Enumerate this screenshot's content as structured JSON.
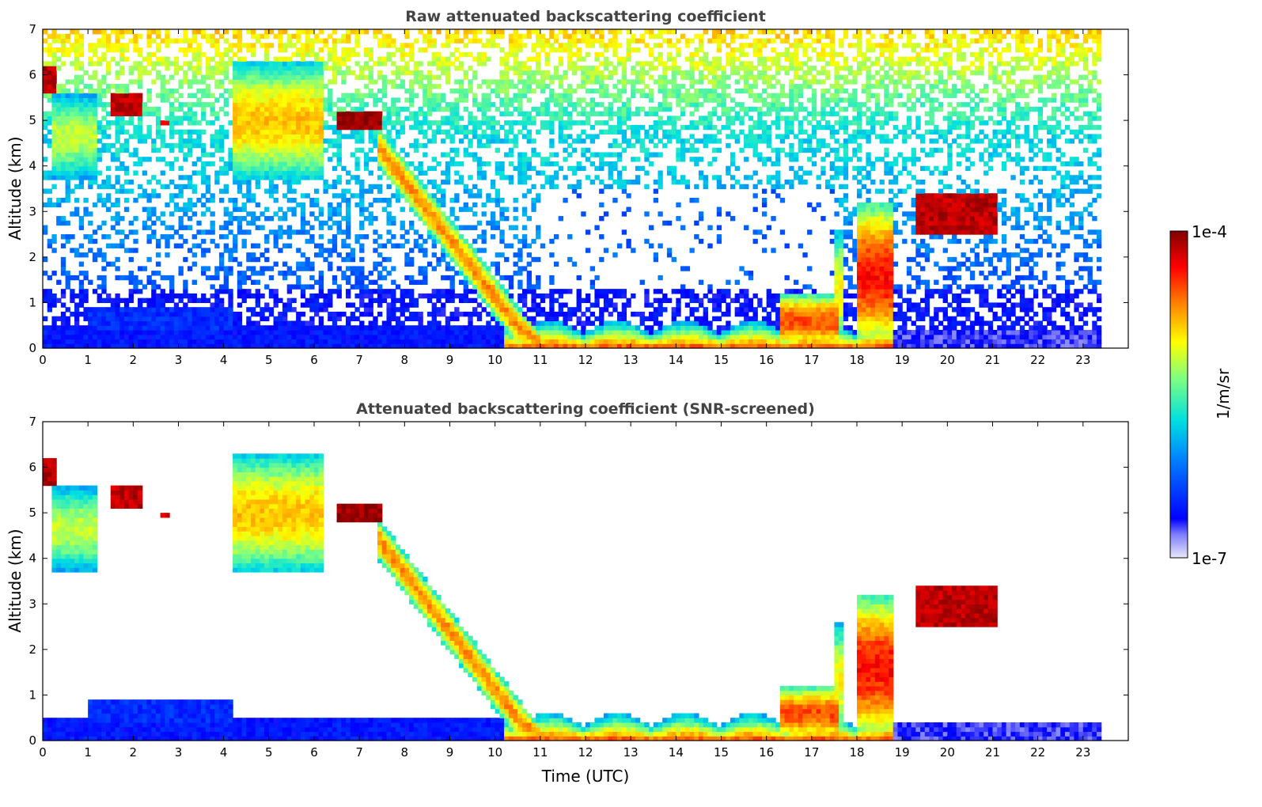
{
  "chart_data": [
    {
      "type": "heatmap",
      "title": "Raw attenuated backscattering coefficient",
      "xlabel": "",
      "ylabel": "Altitude (km)",
      "xlim": [
        0,
        24
      ],
      "ylim": [
        0,
        7
      ],
      "xticks": [
        "0",
        "1",
        "2",
        "3",
        "4",
        "5",
        "6",
        "7",
        "8",
        "9",
        "10",
        "11",
        "12",
        "13",
        "14",
        "15",
        "16",
        "17",
        "18",
        "19",
        "20",
        "21",
        "22",
        "23"
      ],
      "yticks": [
        "0",
        "1",
        "2",
        "3",
        "4",
        "5",
        "6",
        "7"
      ],
      "data_end_time": 23.4,
      "noise_background": true,
      "features": [
        {
          "type": "boundary_layer",
          "t_start": 0,
          "t_end": 10.2,
          "top_km": 0.45,
          "level": 0.15
        },
        {
          "type": "aerosol_plume",
          "t_start": 1.0,
          "t_end": 4.2,
          "base_km": 0.4,
          "top_km": 0.9,
          "level": 0.18
        },
        {
          "type": "cloud_layer",
          "t_start": 10.2,
          "t_end": 18.8,
          "top_km": 0.6,
          "level": 0.85
        },
        {
          "type": "high_cloud",
          "t_start": 0.0,
          "t_end": 0.3,
          "base_km": 5.6,
          "top_km": 6.2,
          "level": 0.95
        },
        {
          "type": "high_cloud",
          "t_start": 1.5,
          "t_end": 2.2,
          "base_km": 5.15,
          "top_km": 5.55,
          "level": 0.95
        },
        {
          "type": "high_cloud",
          "t_start": 2.6,
          "t_end": 2.8,
          "base_km": 4.9,
          "top_km": 5.0,
          "level": 0.9
        },
        {
          "type": "high_cloud",
          "t_start": 6.5,
          "t_end": 7.5,
          "base_km": 4.85,
          "top_km": 5.2,
          "level": 0.98
        },
        {
          "type": "cirrus_fall",
          "t_start": 7.4,
          "t_end": 11.0,
          "top_start_km": 4.9,
          "top_end_km": 0.3,
          "thickness_km": 0.9,
          "level": 0.7
        },
        {
          "type": "cirrus",
          "t_start": 4.2,
          "t_end": 6.2,
          "base_km": 3.7,
          "top_km": 6.3,
          "level": 0.65
        },
        {
          "type": "cirrus",
          "t_start": 0.2,
          "t_end": 1.2,
          "base_km": 3.7,
          "top_km": 5.6,
          "level": 0.55
        },
        {
          "type": "convective",
          "t_start": 16.3,
          "t_end": 17.6,
          "base_km": 0,
          "top_km": 1.2,
          "level": 0.75
        },
        {
          "type": "convective",
          "t_start": 17.5,
          "t_end": 17.7,
          "base_km": 0,
          "top_km": 2.6,
          "level": 0.6
        },
        {
          "type": "convective",
          "t_start": 18.0,
          "t_end": 18.8,
          "base_km": 0,
          "top_km": 3.2,
          "level": 0.8
        },
        {
          "type": "high_cloud",
          "t_start": 19.3,
          "t_end": 21.1,
          "base_km": 2.5,
          "top_km": 3.4,
          "level": 0.95
        },
        {
          "type": "boundary_layer",
          "t_start": 18.8,
          "t_end": 23.4,
          "top_km": 0.4,
          "level": 0.1
        }
      ]
    },
    {
      "type": "heatmap",
      "title": "Attenuated backscattering coefficient (SNR-screened)",
      "xlabel": "Time (UTC)",
      "ylabel": "Altitude (km)",
      "xlim": [
        0,
        24
      ],
      "ylim": [
        0,
        7
      ],
      "xticks": [
        "0",
        "1",
        "2",
        "3",
        "4",
        "5",
        "6",
        "7",
        "8",
        "9",
        "10",
        "11",
        "12",
        "13",
        "14",
        "15",
        "16",
        "17",
        "18",
        "19",
        "20",
        "21",
        "22",
        "23"
      ],
      "yticks": [
        "0",
        "1",
        "2",
        "3",
        "4",
        "5",
        "6",
        "7"
      ],
      "data_end_time": 23.4,
      "noise_background": false,
      "features": "same as raw panel with noise removed"
    }
  ],
  "colorbar": {
    "label": "1/m/sr",
    "min_label": "1e-7",
    "max_label": "1e-4",
    "scale": "log",
    "colormap": "jet"
  },
  "colors": {
    "accent_low": "#0000ff",
    "accent_high": "#8b0000",
    "title": "#444444"
  }
}
